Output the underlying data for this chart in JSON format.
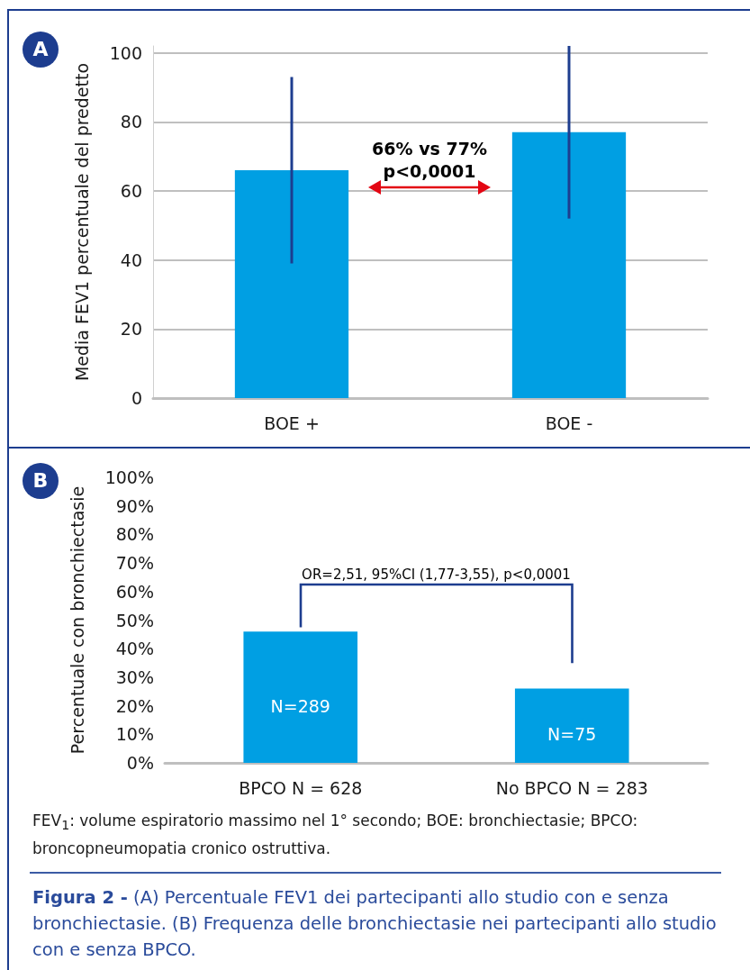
{
  "chart_data": [
    {
      "type": "bar",
      "categories": [
        "BOE +",
        "BOE -"
      ],
      "values": [
        66,
        77
      ],
      "errors": [
        [
          39,
          93
        ],
        [
          52,
          102
        ]
      ],
      "color": "#009fe3",
      "ylabel": "Media FEV1 percentuale del predetto",
      "ylim": [
        0,
        102
      ],
      "yticks": [
        0,
        20,
        40,
        60,
        80,
        100
      ],
      "grid": "y",
      "annotations": [
        "A",
        "66% vs 77%\np<0,0001"
      ]
    },
    {
      "type": "bar",
      "categories": [
        "BPCO N = 628",
        "No BPCO N = 283"
      ],
      "values": [
        46,
        26
      ],
      "color": "#009fe3",
      "ylabel": "Percentuale con bronchiectasie",
      "ylim": [
        0,
        100
      ],
      "yticks": [
        {
          "value": 0,
          "label": "0%"
        },
        {
          "value": 10,
          "label": "10%"
        },
        {
          "value": 20,
          "label": "20%"
        },
        {
          "value": 30,
          "label": "30%"
        },
        {
          "value": 40,
          "label": "40%"
        },
        {
          "value": 50,
          "label": "50%"
        },
        {
          "value": 60,
          "label": "60%"
        },
        {
          "value": 70,
          "label": "70%"
        },
        {
          "value": 80,
          "label": "80%"
        },
        {
          "value": 90,
          "label": "90%"
        },
        {
          "value": 100,
          "label": "100%"
        }
      ],
      "grid": false,
      "annotations": [
        "B",
        "OR=2,51, 95%CI (1,77-3,55), p<0,0001",
        "FEV$_{1}$: volume espiratorio massimo nel 1° secondo; BOE: bronchiectasie; BPCO: broncopneumopatia cronico ostruttiva.",
        "Figura 2 -",
        "(A) Percentuale FEV1 dei partecipanti allo studio con e senza bronchiectasie. (B) Frequenza delle bronchiectasie nei partecipanti allo studio con e senza BPCO.",
        "N=289",
        "N=75"
      ]
    }
  ]
}
